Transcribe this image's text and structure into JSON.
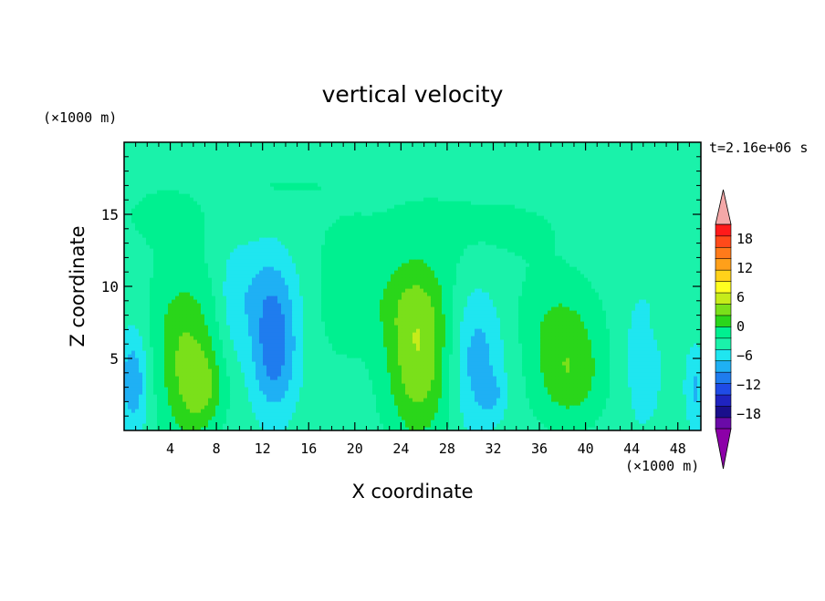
{
  "chart_data": {
    "type": "heatmap",
    "title": "vertical velocity",
    "xlabel": "X coordinate",
    "ylabel": "Z coordinate",
    "x_unit": "(×1000 m)",
    "y_unit": "(×1000 m)",
    "time_label": "t=2.16e+06 s",
    "xlim": [
      0,
      50
    ],
    "ylim": [
      0,
      20
    ],
    "x_ticks": [
      4,
      8,
      12,
      16,
      20,
      24,
      28,
      32,
      36,
      40,
      44,
      48
    ],
    "y_ticks": [
      5,
      10,
      15
    ],
    "colorbar": {
      "tick_labels": [
        "18",
        "12",
        "6",
        "0",
        "−6",
        "−12",
        "−18"
      ],
      "tick_values": [
        18,
        12,
        6,
        0,
        -6,
        -12,
        -18
      ],
      "levels": [
        -21,
        -18,
        -15,
        -12,
        -9,
        -6,
        -3,
        0,
        3,
        6,
        9,
        12,
        15,
        18,
        21
      ],
      "colors": [
        "#6a0aa8",
        "#1a0f8c",
        "#1f23c0",
        "#1f4be6",
        "#1f7cee",
        "#1fb0f4",
        "#1fe6f0",
        "#1af2aa",
        "#00f090",
        "#2ad61a",
        "#7ae01a",
        "#c6ec1a",
        "#ffff20",
        "#ffd21a",
        "#ffa01a",
        "#ff7a1a",
        "#ff4a1a",
        "#ff1a1a"
      ],
      "under_color": "#8c00a8",
      "over_color": "#f4a8a8"
    },
    "field": {
      "background": 1.5,
      "features": [
        {
          "x": 5.5,
          "z": 3.5,
          "sx": 1.8,
          "sz": 3.5,
          "amp": 6.5
        },
        {
          "x": 7.0,
          "z": 3.0,
          "sx": 1.2,
          "sz": 1.8,
          "amp": 4.5
        },
        {
          "x": 5.0,
          "z": 8.0,
          "sx": 2.2,
          "sz": 3.0,
          "amp": 3.5
        },
        {
          "x": 25.5,
          "z": 5.0,
          "sx": 2.0,
          "sz": 4.0,
          "amp": 10.0
        },
        {
          "x": 24.5,
          "z": 9.0,
          "sx": 2.5,
          "sz": 2.0,
          "amp": 3.0
        },
        {
          "x": 38.5,
          "z": 4.0,
          "sx": 2.2,
          "sz": 2.5,
          "amp": 7.0
        },
        {
          "x": 37.5,
          "z": 8.0,
          "sx": 2.5,
          "sz": 2.0,
          "amp": 3.5
        },
        {
          "x": 19.0,
          "z": 9.0,
          "sx": 2.0,
          "sz": 3.5,
          "amp": 2.5
        },
        {
          "x": 13.0,
          "z": 5.5,
          "sx": 1.4,
          "sz": 3.0,
          "amp": -9.0
        },
        {
          "x": 12.5,
          "z": 10.0,
          "sx": 1.8,
          "sz": 2.5,
          "amp": -4.0
        },
        {
          "x": 30.5,
          "z": 5.0,
          "sx": 1.6,
          "sz": 3.5,
          "amp": -6.0
        },
        {
          "x": 32.0,
          "z": 2.5,
          "sx": 0.8,
          "sz": 1.0,
          "amp": -3.0
        },
        {
          "x": 0.8,
          "z": 3.5,
          "sx": 0.9,
          "sz": 2.5,
          "amp": -7.0
        },
        {
          "x": 45.0,
          "z": 5.0,
          "sx": 1.2,
          "sz": 3.5,
          "amp": -3.5
        },
        {
          "x": 49.5,
          "z": 3.0,
          "sx": 0.6,
          "sz": 2.0,
          "amp": -5.0
        },
        {
          "x": 9.5,
          "z": 9.0,
          "sx": 1.0,
          "sz": 3.0,
          "amp": -3.0
        },
        {
          "x": 3.5,
          "z": 15.0,
          "sx": 3.5,
          "sz": 2.0,
          "amp": 2.0
        },
        {
          "x": 30.0,
          "z": 14.0,
          "sx": 9.0,
          "sz": 2.5,
          "amp": 2.0
        },
        {
          "x": 14.0,
          "z": 17.0,
          "sx": 3.5,
          "sz": 0.7,
          "amp": 1.5
        },
        {
          "x": 47.0,
          "z": 7.5,
          "sx": 1.0,
          "sz": 1.0,
          "amp": 2.0
        }
      ]
    }
  }
}
